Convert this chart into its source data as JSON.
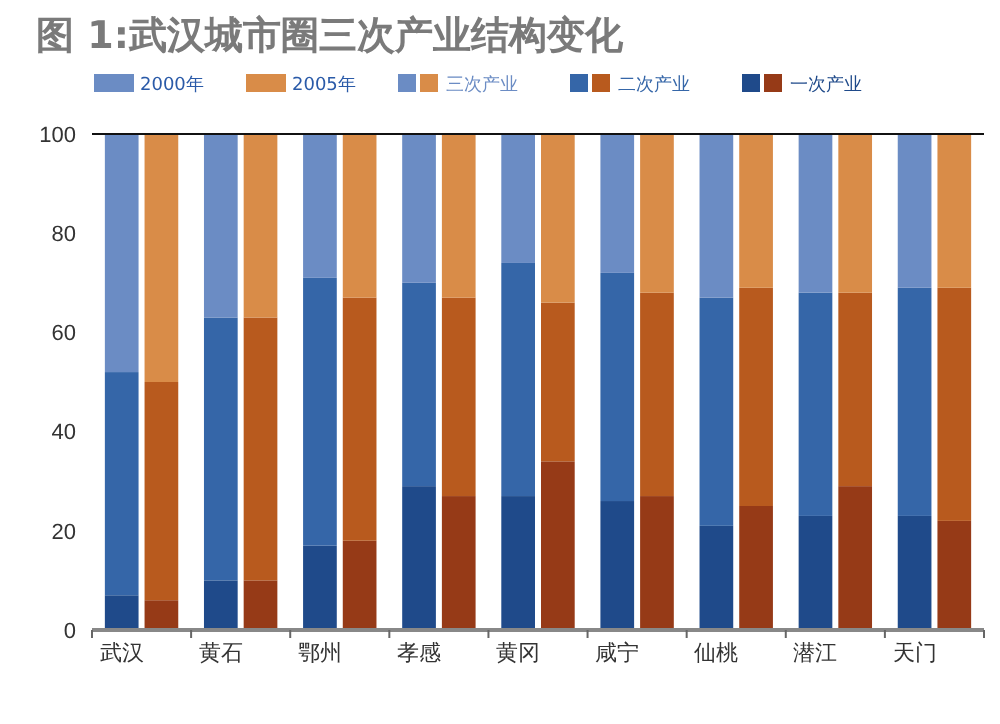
{
  "chart_data": {
    "type": "bar",
    "title": "图 1:武汉城市圈三次产业结构变化",
    "categories": [
      "武汉",
      null,
      "黄石",
      null,
      "鄂州",
      null,
      "孝感",
      null,
      "黄冈",
      null,
      "咸宁",
      null,
      "仙桃",
      null,
      "潜江",
      null,
      "天门",
      null
    ],
    "stacked": true,
    "legend": "top",
    "annotations": [
      "2000年",
      "2005年"
    ],
    "ylim": [
      0,
      100
    ],
    "yticks": [
      0,
      20,
      40,
      60,
      80,
      100
    ],
    "series": [
      {
        "name": "一次产业",
        "colors": [
          "#1f4a8a",
          "#963a17",
          "#1f4a8a",
          "#963a17",
          "#1f4a8a",
          "#963a17",
          "#1f4a8a",
          "#963a17",
          "#1f4a8a",
          "#963a17",
          "#1f4a8a",
          "#963a17",
          "#1f4a8a",
          "#963a17",
          "#1f4a8a",
          "#963a17",
          "#1f4a8a",
          "#963a17"
        ],
        "values": [
          7,
          6,
          10,
          10,
          17,
          18,
          29,
          27,
          27,
          34,
          26,
          27,
          21,
          25,
          23,
          29,
          23,
          22
        ]
      },
      {
        "name": "二次产业",
        "colors": [
          "#3566a8",
          "#b85a1e",
          "#3566a8",
          "#b85a1e",
          "#3566a8",
          "#b85a1e",
          "#3566a8",
          "#b85a1e",
          "#3566a8",
          "#b85a1e",
          "#3566a8",
          "#b85a1e",
          "#3566a8",
          "#b85a1e",
          "#3566a8",
          "#b85a1e",
          "#3566a8",
          "#b85a1e"
        ],
        "values": [
          45,
          44,
          53,
          53,
          54,
          49,
          41,
          40,
          47,
          32,
          46,
          41,
          46,
          44,
          45,
          39,
          46,
          47
        ]
      },
      {
        "name": "三次产业",
        "colors": [
          "#6b8cc4",
          "#d98c48",
          "#6b8cc4",
          "#d98c48",
          "#6b8cc4",
          "#d98c48",
          "#6b8cc4",
          "#d98c48",
          "#6b8cc4",
          "#d98c48",
          "#6b8cc4",
          "#d98c48",
          "#6b8cc4",
          "#d98c48",
          "#6b8cc4",
          "#d98c48",
          "#6b8cc4",
          "#d98c48"
        ],
        "values": [
          48,
          50,
          37,
          37,
          29,
          33,
          30,
          33,
          26,
          34,
          28,
          32,
          33,
          31,
          32,
          32,
          31,
          31
        ]
      }
    ]
  }
}
